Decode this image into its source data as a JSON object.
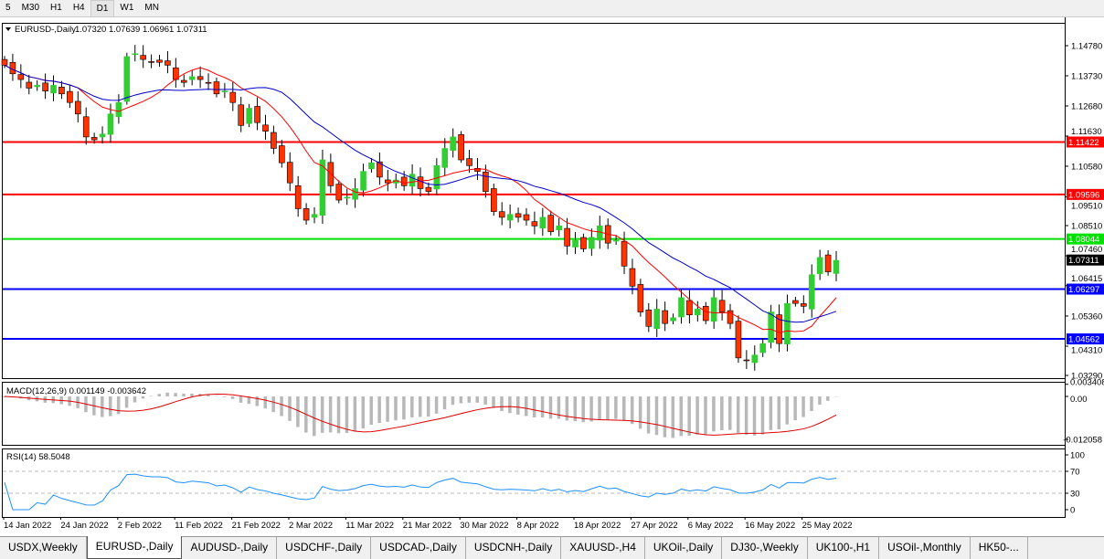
{
  "toolbar": {
    "timeframes": [
      "5",
      "M30",
      "H1",
      "H4",
      "D1",
      "W1",
      "MN"
    ],
    "active": "D1"
  },
  "chart": {
    "title": "EURUSD-,Daily",
    "ohlc": "1.07320 1.07639 1.06961 1.07311",
    "price_ticks": [
      "1.14780",
      "1.13730",
      "1.12680",
      "1.11630",
      "1.10580",
      "1.09510",
      "1.08510",
      "1.07460",
      "1.06415",
      "1.05360",
      "1.04310",
      "1.03290"
    ],
    "horizontal_lines": [
      {
        "price": "1.11422",
        "color": "#ff0000"
      },
      {
        "price": "1.09596",
        "color": "#ff0000"
      },
      {
        "price": "1.08044",
        "color": "#00e000"
      },
      {
        "price": "1.06297",
        "color": "#0000ff"
      },
      {
        "price": "1.04562",
        "color": "#0000ff"
      }
    ],
    "current_price": "1.07311",
    "colors": {
      "bull": "#32cd32",
      "bear": "#ff3300",
      "ma_fast": "#ff0000",
      "ma_slow": "#0000cc"
    },
    "closes": [
      1.141,
      1.138,
      1.136,
      1.133,
      1.134,
      1.132,
      1.134,
      1.131,
      1.128,
      1.124,
      1.116,
      1.115,
      1.117,
      1.124,
      1.128,
      1.144,
      1.145,
      1.143,
      1.142,
      1.142,
      1.141,
      1.136,
      1.135,
      1.137,
      1.136,
      1.135,
      1.131,
      1.132,
      1.128,
      1.12,
      1.126,
      1.121,
      1.118,
      1.112,
      1.107,
      1.1,
      1.091,
      1.087,
      1.089,
      1.108,
      1.099,
      1.094,
      1.095,
      1.098,
      1.104,
      1.107,
      1.102,
      1.1,
      1.101,
      1.099,
      1.103,
      1.098,
      1.097,
      1.106,
      1.112,
      1.116,
      1.108,
      1.106,
      1.104,
      1.097,
      1.09,
      1.088,
      1.089,
      1.088,
      1.087,
      1.085,
      1.088,
      1.083,
      1.085,
      1.078,
      1.08,
      1.077,
      1.081,
      1.085,
      1.079,
      1.08,
      1.071,
      1.064,
      1.055,
      1.05,
      1.056,
      1.051,
      1.053,
      1.06,
      1.054,
      1.056,
      1.052,
      1.06,
      1.055,
      1.051,
      1.039,
      1.038,
      1.04,
      1.044,
      1.055,
      1.044,
      1.058,
      1.058,
      1.057,
      1.068,
      1.074,
      1.069,
      1.073
    ],
    "dates": [
      "14 Jan 2022",
      "24 Jan 2022",
      "2 Feb 2022",
      "11 Feb 2022",
      "21 Feb 2022",
      "2 Mar 2022",
      "11 Mar 2022",
      "21 Mar 2022",
      "30 Mar 2022",
      "8 Apr 2022",
      "18 Apr 2022",
      "27 Apr 2022",
      "6 May 2022",
      "16 May 2022",
      "25 May 2022"
    ]
  },
  "macd": {
    "label": "MACD(12,26,9) 0.001149 -0.003642",
    "ticks": [
      "0.003408",
      "0.00",
      "-0.012058"
    ]
  },
  "rsi": {
    "label": "RSI(14) 58.5048",
    "ticks": [
      "100",
      "70",
      "30",
      "0"
    ]
  },
  "tabs": [
    "USDX,Weekly",
    "EURUSD-,Daily",
    "AUDUSD-,Daily",
    "USDCHF-,Daily",
    "USDCAD-,Daily",
    "USDCNH-,Daily",
    "XAUUSD-,H4",
    "UKOil-,Daily",
    "DJ30-,Weekly",
    "UK100-,H1",
    "USOil-,Monthly",
    "HK50-..."
  ],
  "active_tab": "EURUSD-,Daily"
}
